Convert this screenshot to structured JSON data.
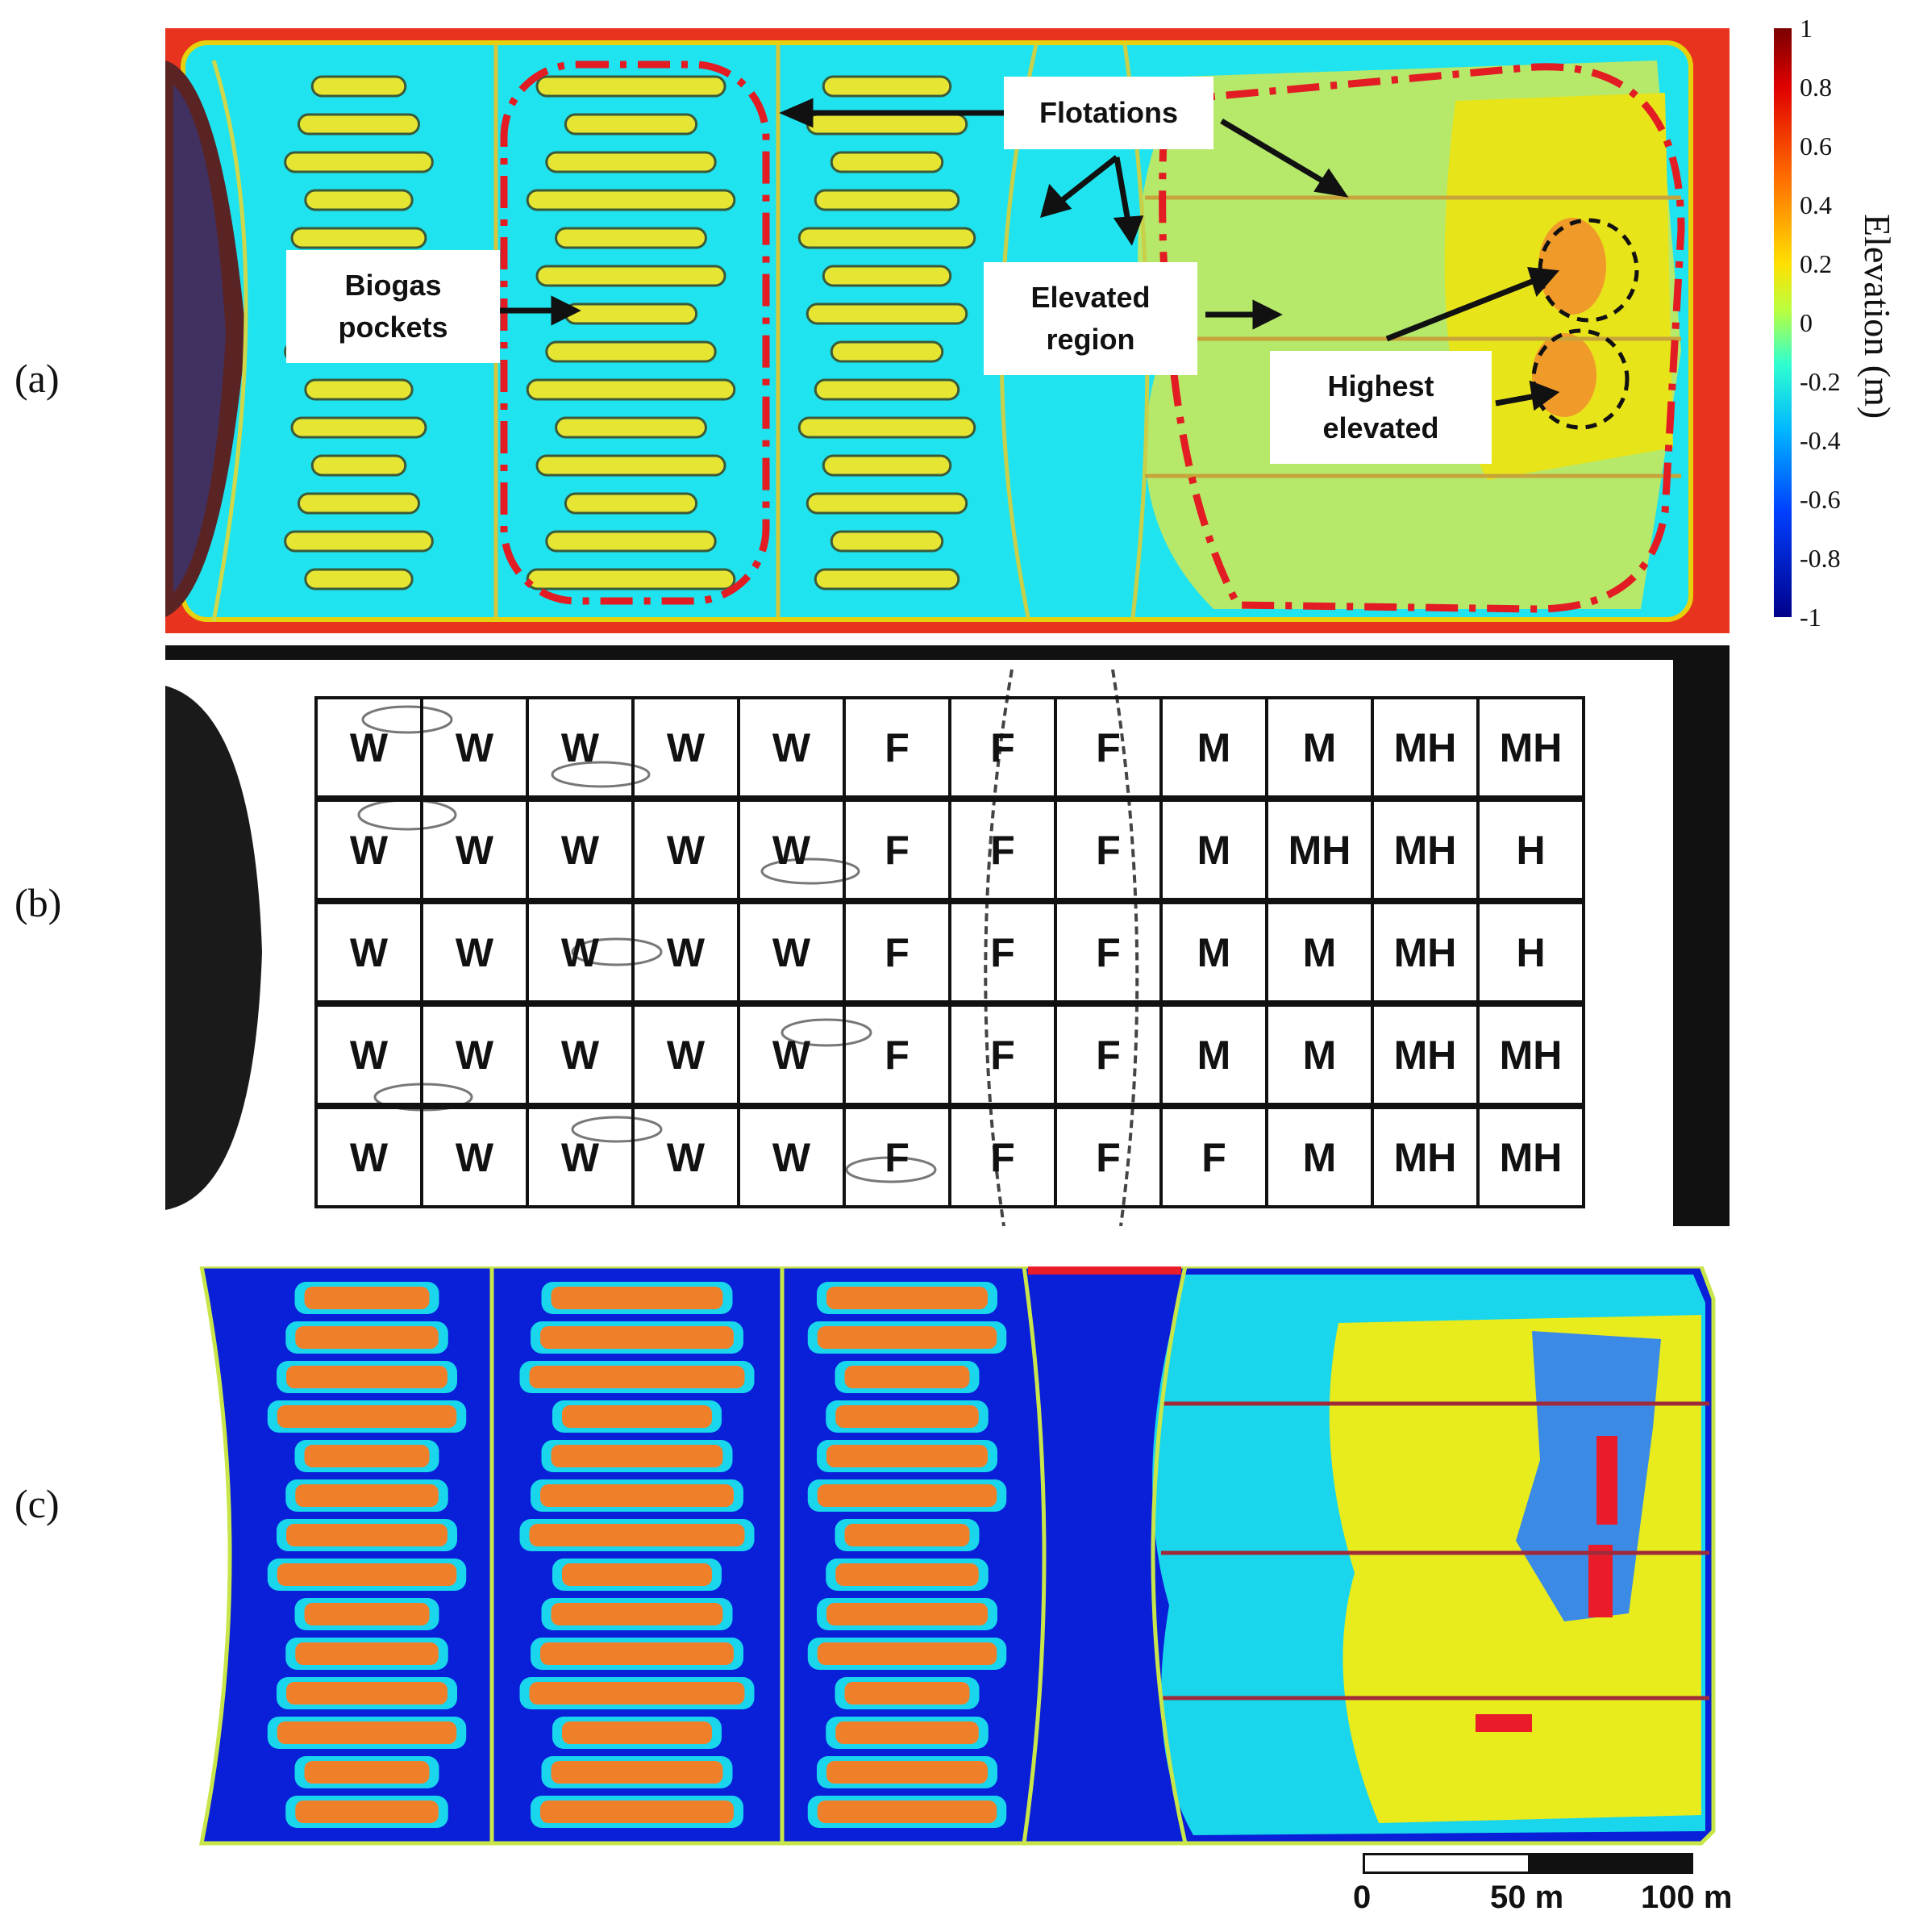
{
  "panel_labels": [
    "(a)",
    "(b)",
    "(c)"
  ],
  "panel_a": {
    "callouts": {
      "flotations": "Flotations",
      "biogas": "Biogas\npockets",
      "elevated": "Elevated\nregion",
      "highest": "Highest\nelevated"
    },
    "colorbar": {
      "title": "Elevation (m)",
      "ticks": [
        "1",
        "0.8",
        "0.6",
        "0.4",
        "0.2",
        "0",
        "-0.2",
        "-0.4",
        "-0.6",
        "-0.8",
        "-1"
      ],
      "range": [
        -1,
        1
      ],
      "colormap": "jet"
    }
  },
  "panel_b": {
    "rows": [
      [
        "W",
        "W",
        "W",
        "W",
        "W",
        "F",
        "F",
        "F",
        "M",
        "M",
        "MH",
        "MH"
      ],
      [
        "W",
        "W",
        "W",
        "W",
        "W",
        "F",
        "F",
        "F",
        "M",
        "MH",
        "MH",
        "H"
      ],
      [
        "W",
        "W",
        "W",
        "W",
        "W",
        "F",
        "F",
        "F",
        "M",
        "M",
        "MH",
        "H"
      ],
      [
        "W",
        "W",
        "W",
        "W",
        "W",
        "F",
        "F",
        "F",
        "M",
        "M",
        "MH",
        "MH"
      ],
      [
        "W",
        "W",
        "W",
        "W",
        "W",
        "F",
        "F",
        "F",
        "F",
        "M",
        "MH",
        "MH"
      ]
    ]
  },
  "panel_c": {
    "colors": {
      "water": "#0a1fd8",
      "surface": "#19d6ec",
      "pocket": "#f07f2a",
      "elevated": "#e8ec1c",
      "peak": "#ea1c2a",
      "mid": "#3a8ae6"
    }
  },
  "scale_bar": {
    "labels": [
      "0",
      "50 m",
      "100 m"
    ]
  }
}
